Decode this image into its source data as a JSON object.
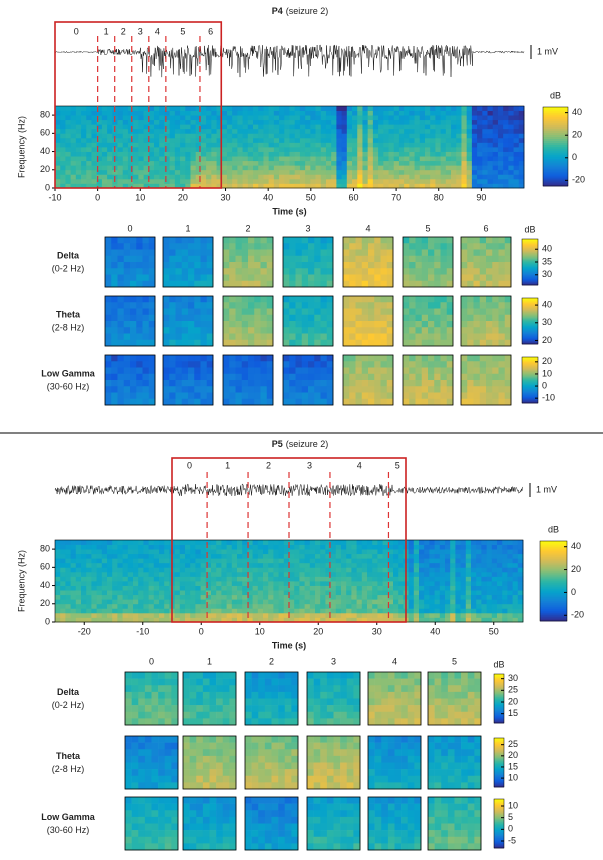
{
  "panels": [
    {
      "title": "P4",
      "subtitle": "(seizure 2)",
      "scale_label": "1 mV",
      "spectrogram": {
        "ylabel": "Frequency (Hz)",
        "xlabel": "Time (s)",
        "xlim": [
          -10,
          100
        ],
        "xticks": [
          -10,
          0,
          10,
          20,
          30,
          40,
          50,
          60,
          70,
          80,
          90
        ],
        "ylim": [
          0,
          90
        ],
        "yticks": [
          0,
          20,
          40,
          60,
          80
        ],
        "colorbar": {
          "label": "dB",
          "lim": [
            -25,
            45
          ],
          "ticks": [
            -20,
            0,
            20,
            40
          ]
        }
      },
      "window_edges": [
        -10,
        0,
        4,
        8,
        12,
        16,
        24,
        29
      ],
      "window_labels": [
        0,
        1,
        2,
        3,
        4,
        5,
        6
      ],
      "bands": [
        {
          "name": "Delta",
          "range": "(0-2 Hz)",
          "colorbar": {
            "label": "dB",
            "lim": [
              26,
              44
            ],
            "ticks": [
              30,
              35,
              40
            ]
          }
        },
        {
          "name": "Theta",
          "range": "(2-8 Hz)",
          "colorbar": {
            "lim": [
              18,
              44
            ],
            "ticks": [
              20,
              30,
              40
            ]
          }
        },
        {
          "name": "Low Gamma",
          "range": "(30-60 Hz)",
          "colorbar": {
            "lim": [
              -14,
              24
            ],
            "ticks": [
              -10,
              0,
              10,
              20
            ]
          }
        }
      ]
    },
    {
      "title": "P5",
      "subtitle": "(seizure 2)",
      "scale_label": "1 mV",
      "spectrogram": {
        "ylabel": "Frequency (Hz)",
        "xlabel": "Time (s)",
        "xlim": [
          -25,
          55
        ],
        "xticks": [
          -20,
          -10,
          0,
          10,
          20,
          30,
          40,
          50
        ],
        "ylim": [
          0,
          90
        ],
        "yticks": [
          0,
          20,
          40,
          60,
          80
        ],
        "colorbar": {
          "label": "dB",
          "lim": [
            -25,
            45
          ],
          "ticks": [
            -20,
            0,
            20,
            40
          ]
        }
      },
      "window_edges": [
        -5,
        1,
        8,
        15,
        22,
        32,
        35
      ],
      "window_labels": [
        0,
        1,
        2,
        3,
        4,
        5
      ],
      "bands": [
        {
          "name": "Delta",
          "range": "(0-2 Hz)",
          "colorbar": {
            "label": "dB",
            "lim": [
              11,
              32
            ],
            "ticks": [
              15,
              20,
              25,
              30
            ]
          }
        },
        {
          "name": "Theta",
          "range": "(2-8 Hz)",
          "colorbar": {
            "lim": [
              6,
              28
            ],
            "ticks": [
              10,
              15,
              20,
              25
            ]
          }
        },
        {
          "name": "Low Gamma",
          "range": "(30-60 Hz)",
          "colorbar": {
            "lim": [
              -8,
              13
            ],
            "ticks": [
              -5,
              0,
              5,
              10
            ]
          }
        }
      ]
    }
  ]
}
